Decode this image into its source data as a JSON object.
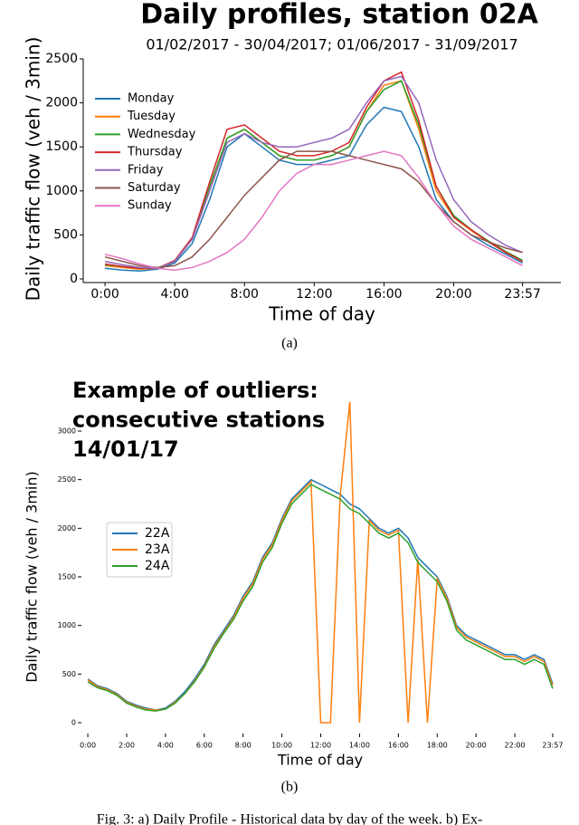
{
  "chart_data": [
    {
      "type": "line",
      "title": "Daily profiles, station 02A",
      "subtitle": "01/02/2017 - 30/04/2017; 01/06/2017 - 31/09/2017",
      "y_label": "Daily traffic flow (veh / 3min)",
      "x_label": "Time of day",
      "panel_label": "(a)",
      "legend": "upper left",
      "x": [
        0,
        1,
        2,
        3,
        4,
        5,
        6,
        7,
        8,
        9,
        10,
        11,
        12,
        13,
        14,
        15,
        16,
        17,
        18,
        19,
        20,
        21,
        22,
        23,
        23.95
      ],
      "xlim": [
        -1.25,
        26.15
      ],
      "xticks": [
        {
          "value": 0,
          "label": "0:00"
        },
        {
          "value": 4,
          "label": "4:00"
        },
        {
          "value": 8,
          "label": "8:00"
        },
        {
          "value": 12,
          "label": "12:00"
        },
        {
          "value": 16,
          "label": "16:00"
        },
        {
          "value": 20,
          "label": "20:00"
        },
        {
          "value": 23.95,
          "label": "23:57"
        }
      ],
      "ylim": [
        0,
        2500
      ],
      "yticks": [
        0,
        500,
        1000,
        1500,
        2000,
        2500
      ],
      "series": [
        {
          "name": "Monday",
          "color": "#1f77b4",
          "values": [
            120,
            100,
            90,
            110,
            180,
            400,
            900,
            1500,
            1650,
            1500,
            1350,
            1300,
            1300,
            1350,
            1400,
            1750,
            1950,
            1900,
            1500,
            900,
            650,
            500,
            380,
            280,
            180
          ]
        },
        {
          "name": "Tuesday",
          "color": "#ff7f0e",
          "values": [
            150,
            130,
            110,
            120,
            200,
            450,
            1000,
            1600,
            1700,
            1550,
            1400,
            1350,
            1350,
            1400,
            1500,
            1900,
            2200,
            2250,
            1700,
            1000,
            700,
            550,
            420,
            300,
            200
          ]
        },
        {
          "name": "Wednesday",
          "color": "#2ca02c",
          "values": [
            160,
            140,
            120,
            120,
            200,
            450,
            1050,
            1600,
            1700,
            1550,
            1400,
            1350,
            1350,
            1400,
            1500,
            1900,
            2150,
            2250,
            1750,
            1050,
            720,
            560,
            430,
            310,
            210
          ]
        },
        {
          "name": "Thursday",
          "color": "#d62728",
          "values": [
            170,
            140,
            120,
            120,
            210,
            470,
            1100,
            1700,
            1750,
            1600,
            1450,
            1400,
            1400,
            1450,
            1550,
            1950,
            2250,
            2350,
            1800,
            1050,
            700,
            560,
            420,
            300,
            200
          ]
        },
        {
          "name": "Friday",
          "color": "#9467bd",
          "values": [
            200,
            160,
            130,
            120,
            200,
            450,
            1000,
            1550,
            1650,
            1550,
            1500,
            1500,
            1550,
            1600,
            1700,
            2000,
            2250,
            2300,
            2000,
            1350,
            900,
            650,
            500,
            380,
            300
          ]
        },
        {
          "name": "Saturday",
          "color": "#8c564b",
          "values": [
            250,
            200,
            150,
            130,
            150,
            250,
            450,
            700,
            950,
            1150,
            1350,
            1450,
            1450,
            1450,
            1400,
            1350,
            1300,
            1250,
            1100,
            850,
            650,
            500,
            420,
            350,
            300
          ]
        },
        {
          "name": "Sunday",
          "color": "#e377c2",
          "values": [
            280,
            230,
            170,
            120,
            100,
            130,
            200,
            300,
            450,
            700,
            1000,
            1200,
            1300,
            1300,
            1350,
            1400,
            1450,
            1400,
            1150,
            850,
            600,
            450,
            350,
            250,
            150
          ]
        }
      ]
    },
    {
      "type": "line",
      "title": [
        "Example of outliers:",
        "consecutive stations",
        "14/01/17"
      ],
      "y_label": "Daily traffic flow (veh / 3min)",
      "x_label": "Time of day",
      "panel_label": "(b)",
      "legend": "center left",
      "x": [
        0,
        0.5,
        1,
        1.5,
        2,
        2.5,
        3,
        3.5,
        4,
        4.5,
        5,
        5.5,
        6,
        6.5,
        7,
        7.5,
        8,
        8.5,
        9,
        9.5,
        10,
        10.5,
        11,
        11.5,
        12,
        12.5,
        13,
        13.5,
        14,
        14.5,
        15,
        15.5,
        16,
        16.5,
        17,
        17.5,
        18,
        18.5,
        19,
        19.5,
        20,
        20.5,
        21,
        21.5,
        22,
        22.5,
        23,
        23.5,
        23.95
      ],
      "xlim": [
        -0.33,
        24.28
      ],
      "xticks": [
        {
          "value": 0,
          "label": "0:00"
        },
        {
          "value": 2,
          "label": "2:00"
        },
        {
          "value": 4,
          "label": "4:00"
        },
        {
          "value": 6,
          "label": "6:00"
        },
        {
          "value": 8,
          "label": "8:00"
        },
        {
          "value": 10,
          "label": "10:00"
        },
        {
          "value": 12,
          "label": "12:00"
        },
        {
          "value": 14,
          "label": "14:00"
        },
        {
          "value": 16,
          "label": "16:00"
        },
        {
          "value": 18,
          "label": "18:00"
        },
        {
          "value": 20,
          "label": "20:00"
        },
        {
          "value": 22,
          "label": "22:00"
        },
        {
          "value": 23.95,
          "label": "23:57"
        }
      ],
      "ylim": [
        0,
        3000
      ],
      "yticks": [
        0,
        500,
        1000,
        1500,
        2000,
        2500,
        3000
      ],
      "series": [
        {
          "name": "22A",
          "color": "#1f77b4",
          "values": [
            450,
            380,
            350,
            300,
            220,
            180,
            150,
            130,
            150,
            220,
            320,
            450,
            600,
            800,
            950,
            1100,
            1300,
            1450,
            1700,
            1850,
            2100,
            2300,
            2400,
            2500,
            2450,
            2400,
            2350,
            2250,
            2200,
            2100,
            2000,
            1950,
            2000,
            1900,
            1700,
            1600,
            1500,
            1300,
            1000,
            900,
            850,
            800,
            750,
            700,
            700,
            650,
            700,
            650,
            400
          ]
        },
        {
          "name": "23A",
          "color": "#ff7f0e",
          "values": [
            440,
            370,
            340,
            290,
            210,
            170,
            140,
            130,
            140,
            210,
            300,
            430,
            580,
            780,
            930,
            1080,
            1280,
            1430,
            1680,
            1830,
            2080,
            2280,
            2380,
            2480,
            0,
            0,
            2330,
            3300,
            0,
            2080,
            1980,
            1930,
            1980,
            0,
            1680,
            0,
            1480,
            1280,
            980,
            880,
            830,
            780,
            730,
            680,
            680,
            630,
            680,
            630,
            380
          ]
        },
        {
          "name": "24A",
          "color": "#2ca02c",
          "values": [
            420,
            360,
            330,
            280,
            200,
            160,
            130,
            120,
            140,
            200,
            300,
            420,
            570,
            760,
            920,
            1060,
            1250,
            1400,
            1650,
            1800,
            2050,
            2250,
            2350,
            2450,
            2400,
            2350,
            2300,
            2200,
            2150,
            2050,
            1950,
            1900,
            1950,
            1850,
            1650,
            1550,
            1450,
            1250,
            950,
            850,
            800,
            750,
            700,
            650,
            650,
            600,
            650,
            600,
            350
          ]
        }
      ]
    }
  ],
  "figure_caption": "Fig. 3: a) Daily Profile - Historical data by day of the week. b) Ex-"
}
